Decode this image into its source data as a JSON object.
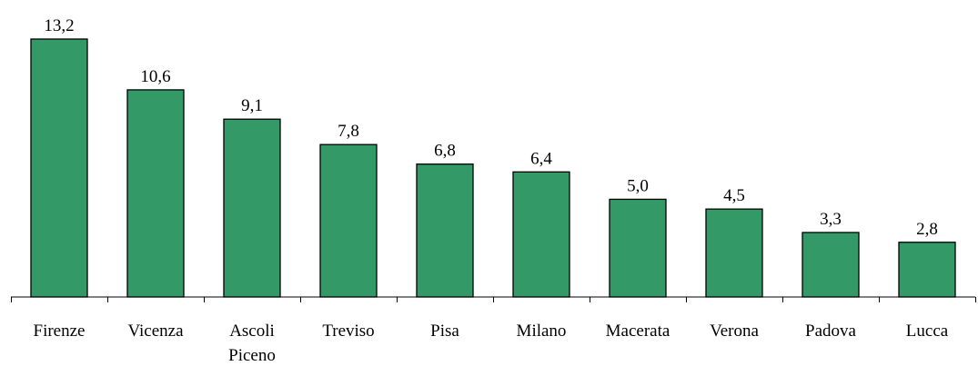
{
  "chart_data": {
    "type": "bar",
    "categories": [
      [
        "Firenze"
      ],
      [
        "Vicenza"
      ],
      [
        "Ascoli",
        "Piceno"
      ],
      [
        "Treviso"
      ],
      [
        "Pisa"
      ],
      [
        "Milano"
      ],
      [
        "Macerata"
      ],
      [
        "Verona"
      ],
      [
        "Padova"
      ],
      [
        "Lucca"
      ]
    ],
    "values": [
      13.2,
      10.6,
      9.1,
      7.8,
      6.8,
      6.4,
      5.0,
      4.5,
      3.3,
      2.8
    ],
    "value_labels": [
      "13,2",
      "10,6",
      "9,1",
      "7,8",
      "6,8",
      "6,4",
      "5,0",
      "4,5",
      "3,3",
      "2,8"
    ],
    "title": "",
    "xlabel": "",
    "ylabel": "",
    "ylim": [
      0,
      13.2
    ],
    "grid": false,
    "legend": "none",
    "colors": {
      "bar_fill": "#339966",
      "bar_stroke": "#000000",
      "axis": "#000000",
      "text": "#000000"
    }
  }
}
